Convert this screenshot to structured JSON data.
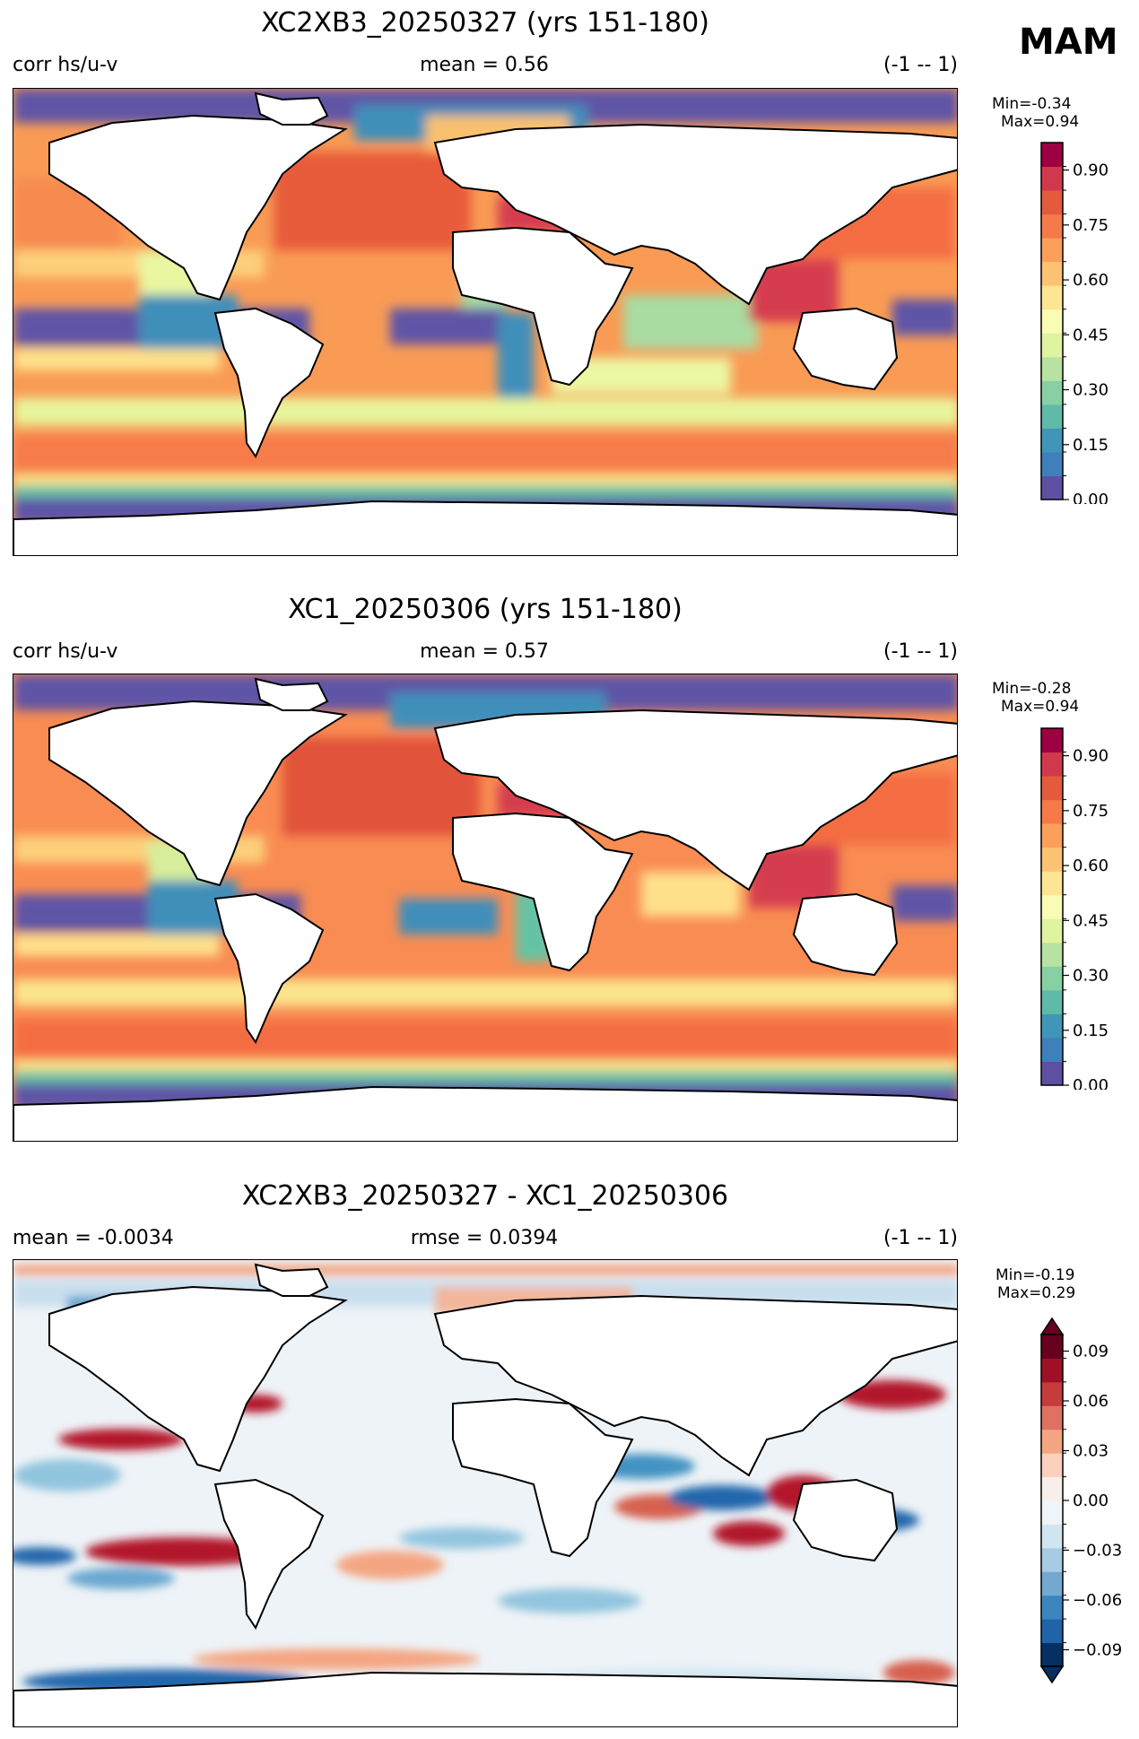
{
  "season": "MAM",
  "panels": [
    {
      "title": "XC2XB3_20250327 (yrs 151-180)",
      "left_label": "corr hs/u-v",
      "center_label": "mean = 0.56",
      "right_label": "(-1 -- 1)",
      "min_label": "Min=-0.34",
      "max_label": "Max=0.94",
      "colormap": "RdYlBu_r spectral",
      "colorbar_ticks": [
        "0.00",
        "0.15",
        "0.30",
        "0.45",
        "0.60",
        "0.75",
        "0.90"
      ]
    },
    {
      "title": "XC1_20250306 (yrs 151-180)",
      "left_label": "corr hs/u-v",
      "center_label": "mean = 0.57",
      "right_label": "(-1 -- 1)",
      "min_label": "Min=-0.28",
      "max_label": "Max=0.94",
      "colormap": "RdYlBu_r spectral",
      "colorbar_ticks": [
        "0.00",
        "0.15",
        "0.30",
        "0.45",
        "0.60",
        "0.75",
        "0.90"
      ]
    },
    {
      "title": "XC2XB3_20250327 - XC1_20250306",
      "left_label": "mean = -0.0034",
      "center_label": "rmse = 0.0394",
      "right_label": "(-1 -- 1)",
      "min_label": "Min=-0.19",
      "max_label": "Max=0.29",
      "colormap": "RdBu_r diverging",
      "colorbar_ticks": [
        "−0.09",
        "−0.06",
        "−0.03",
        "0.00",
        "0.03",
        "0.06",
        "0.09"
      ]
    }
  ],
  "chart_data": [
    {
      "type": "heatmap",
      "title": "XC2XB3_20250327 (yrs 151-180)",
      "xlabel": "",
      "ylabel": "",
      "variable": "corr hs/u-v",
      "mean": 0.56,
      "min": -0.34,
      "max": 0.94,
      "range": [
        -1,
        1
      ],
      "colorbar_range": [
        0.0,
        0.975
      ],
      "colorbar_ticks": [
        0.0,
        0.15,
        0.3,
        0.45,
        0.6,
        0.75,
        0.9
      ]
    },
    {
      "type": "heatmap",
      "title": "XC1_20250306 (yrs 151-180)",
      "xlabel": "",
      "ylabel": "",
      "variable": "corr hs/u-v",
      "mean": 0.57,
      "min": -0.28,
      "max": 0.94,
      "range": [
        -1,
        1
      ],
      "colorbar_range": [
        0.0,
        0.975
      ],
      "colorbar_ticks": [
        0.0,
        0.15,
        0.3,
        0.45,
        0.6,
        0.75,
        0.9
      ]
    },
    {
      "type": "heatmap",
      "title": "XC2XB3_20250327 - XC1_20250306",
      "xlabel": "",
      "ylabel": "",
      "mean": -0.0034,
      "rmse": 0.0394,
      "min": -0.19,
      "max": 0.29,
      "range": [
        -1,
        1
      ],
      "colorbar_range": [
        -0.1,
        0.1
      ],
      "colorbar_extend": "both",
      "colorbar_ticks": [
        -0.09,
        -0.06,
        -0.03,
        0.0,
        0.03,
        0.06,
        0.09
      ]
    }
  ]
}
